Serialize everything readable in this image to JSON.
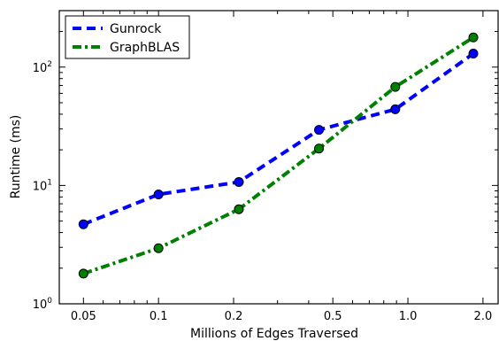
{
  "chart_data": {
    "type": "line",
    "title": "",
    "xlabel": "Millions of Edges Traversed",
    "ylabel": "Runtime (ms)",
    "x_scale": "log",
    "y_scale": "log",
    "xlim": [
      0.04,
      2.3
    ],
    "ylim": [
      1,
      300
    ],
    "x_ticks": [
      0.05,
      0.1,
      0.2,
      0.5,
      1.0,
      2.0
    ],
    "x_tick_labels": [
      "0.05",
      "0.1",
      "0.2",
      "0.5",
      "1.0",
      "2.0"
    ],
    "y_ticks": [
      1,
      10,
      100
    ],
    "y_tick_labels": [
      "10",
      "10",
      "10"
    ],
    "y_tick_exponents": [
      "0",
      "1",
      "2"
    ],
    "grid": false,
    "legend_position": "top-left",
    "series": [
      {
        "name": "Gunrock",
        "color": "#0000ff",
        "line_style": "dashed",
        "marker_color": "#0000ff",
        "x": [
          0.05,
          0.1,
          0.21,
          0.44,
          0.89,
          1.83
        ],
        "y": [
          4.7,
          8.4,
          10.7,
          29.5,
          44,
          130
        ]
      },
      {
        "name": "GraphBLAS",
        "color": "#008000",
        "line_style": "dash-dot",
        "marker_color": "#008000",
        "x": [
          0.05,
          0.1,
          0.21,
          0.44,
          0.89,
          1.83
        ],
        "y": [
          1.8,
          2.95,
          6.3,
          20.5,
          68,
          178
        ]
      }
    ]
  }
}
